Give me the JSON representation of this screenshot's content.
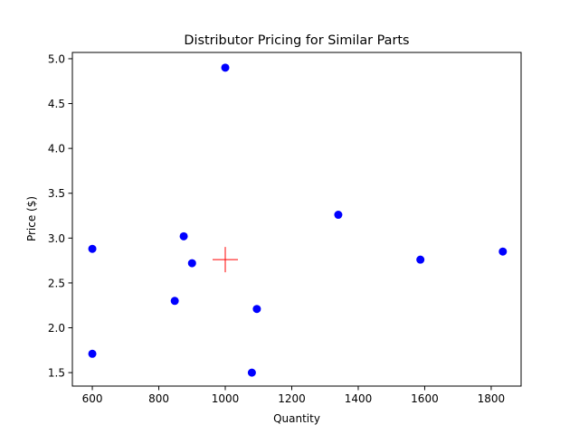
{
  "chart_data": {
    "type": "scatter",
    "title": "Distributor Pricing for Similar Parts",
    "xlabel": "Quantity",
    "ylabel": "Price ($)",
    "xlim": [
      540,
      1890
    ],
    "ylim": [
      1.35,
      5.07
    ],
    "x_ticks": [
      600,
      800,
      1000,
      1200,
      1400,
      1600,
      1800
    ],
    "y_ticks": [
      1.5,
      2.0,
      2.5,
      3.0,
      3.5,
      4.0,
      4.5,
      5.0
    ],
    "x_tick_labels": [
      "600",
      "800",
      "1000",
      "1200",
      "1400",
      "1600",
      "1800"
    ],
    "y_tick_labels": [
      "1.5",
      "2.0",
      "2.5",
      "3.0",
      "3.5",
      "4.0",
      "4.5",
      "5.0"
    ],
    "grid": false,
    "series": [
      {
        "marker": "circle",
        "color": "#0000ff",
        "points": [
          {
            "x": 1000,
            "y": 4.9
          },
          {
            "x": 1340,
            "y": 3.26
          },
          {
            "x": 875,
            "y": 3.02
          },
          {
            "x": 600,
            "y": 2.88
          },
          {
            "x": 1835,
            "y": 2.85
          },
          {
            "x": 1587,
            "y": 2.76
          },
          {
            "x": 900,
            "y": 2.72
          },
          {
            "x": 848,
            "y": 2.3
          },
          {
            "x": 1095,
            "y": 2.21
          },
          {
            "x": 600,
            "y": 1.71
          },
          {
            "x": 1080,
            "y": 1.5
          }
        ]
      },
      {
        "marker": "plus",
        "color": "#ff0000",
        "points": [
          {
            "x": 1000,
            "y": 2.76
          }
        ]
      }
    ]
  }
}
